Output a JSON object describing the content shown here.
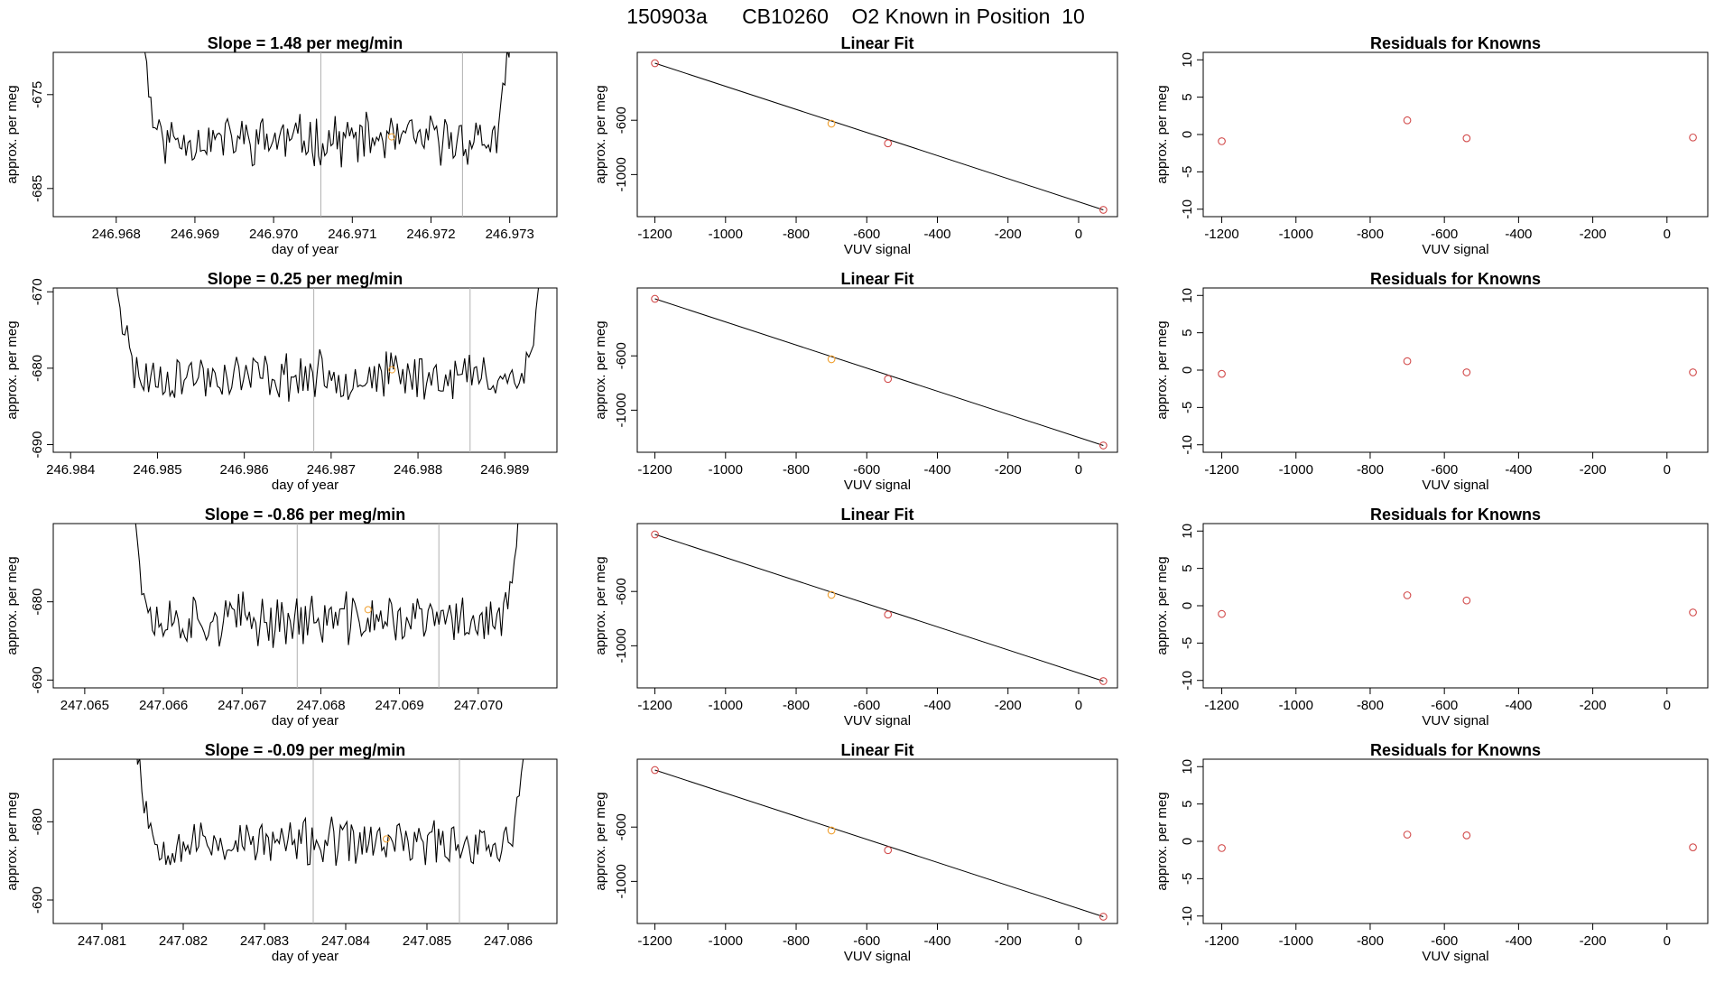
{
  "chart_data": {
    "type": "figure-grid",
    "title": "150903a      CB10260    O2 Known in Position  10",
    "colors": {
      "trace": "#000000",
      "point": "#d24b4b",
      "highlight": "#f0a030",
      "vline": "#b0b0b0"
    },
    "rows": [
      {
        "timeseries": {
          "type": "line",
          "title": "Slope =  1.48  per meg/min",
          "xlabel": "day of year",
          "ylabel": "approx. per meg",
          "xlim": [
            246.9672,
            246.9736
          ],
          "ylim": [
            -688,
            -670.5
          ],
          "xticks": [
            "246.968",
            "246.969",
            "246.970",
            "246.971",
            "246.972",
            "246.973"
          ],
          "yticks": [
            "-675",
            "-685"
          ],
          "vlines": [
            246.9706,
            246.9724
          ],
          "marker": {
            "x": 246.9715,
            "y": -679.5
          },
          "seed": 11,
          "start": 246.96815,
          "end": 246.97315,
          "base": -679.8,
          "amp": 2.2
        },
        "fit": {
          "type": "line",
          "title": "Linear Fit",
          "xlabel": "VUV signal",
          "ylabel": "approx. per meg",
          "xlim": [
            -1250,
            110
          ],
          "ylim": [
            -1310,
            -100
          ],
          "xticks": [
            "-1200",
            "-1000",
            "-800",
            "-600",
            "-400",
            "-200",
            "0"
          ],
          "yticks": [
            "-600",
            "-1000"
          ],
          "points": [
            {
              "x": -1200,
              "y": -180,
              "hi": false
            },
            {
              "x": -700,
              "y": -625,
              "hi": true
            },
            {
              "x": -540,
              "y": -770,
              "hi": false
            },
            {
              "x": 70,
              "y": -1260,
              "hi": false
            }
          ]
        },
        "residuals": {
          "type": "scatter",
          "title": "Residuals for Knowns",
          "xlabel": "VUV signal",
          "xlim": [
            -1250,
            110
          ],
          "ylim": [
            -11,
            11
          ],
          "xticks": [
            "-1200",
            "-1000",
            "-800",
            "-600",
            "-400",
            "-200",
            "0"
          ],
          "yticks": [
            "-10",
            "-5",
            "0",
            "5",
            "10"
          ],
          "points": [
            {
              "x": -1200,
              "y": -0.9
            },
            {
              "x": -700,
              "y": 1.9
            },
            {
              "x": -540,
              "y": -0.5
            },
            {
              "x": 70,
              "y": -0.4
            }
          ]
        }
      },
      {
        "timeseries": {
          "type": "line",
          "title": "Slope =  0.25  per meg/min",
          "xlabel": "day of year",
          "ylabel": "approx. per meg",
          "xlim": [
            246.9838,
            246.9896
          ],
          "ylim": [
            -691,
            -669.5
          ],
          "xticks": [
            "246.984",
            "246.985",
            "246.986",
            "246.987",
            "246.988",
            "246.989"
          ],
          "yticks": [
            "-670",
            "-680",
            "-690"
          ],
          "vlines": [
            246.9868,
            246.9886
          ],
          "marker": {
            "x": 246.9877,
            "y": -680.2
          },
          "seed": 23,
          "start": 246.98435,
          "end": 246.98955,
          "base": -681.0,
          "amp": 2.6
        },
        "fit": {
          "type": "line",
          "title": "Linear Fit",
          "xlabel": "VUV signal",
          "ylabel": "approx. per meg",
          "xlim": [
            -1250,
            110
          ],
          "ylim": [
            -1310,
            -100
          ],
          "xticks": [
            "-1200",
            "-1000",
            "-800",
            "-600",
            "-400",
            "-200",
            "0"
          ],
          "yticks": [
            "-600",
            "-1000"
          ],
          "points": [
            {
              "x": -1200,
              "y": -180,
              "hi": false
            },
            {
              "x": -700,
              "y": -625,
              "hi": true
            },
            {
              "x": -540,
              "y": -770,
              "hi": false
            },
            {
              "x": 70,
              "y": -1260,
              "hi": false
            }
          ]
        },
        "residuals": {
          "type": "scatter",
          "title": "Residuals for Knowns",
          "xlabel": "VUV signal",
          "xlim": [
            -1250,
            110
          ],
          "ylim": [
            -11,
            11
          ],
          "xticks": [
            "-1200",
            "-1000",
            "-800",
            "-600",
            "-400",
            "-200",
            "0"
          ],
          "yticks": [
            "-10",
            "-5",
            "0",
            "5",
            "10"
          ],
          "points": [
            {
              "x": -1200,
              "y": -0.5
            },
            {
              "x": -700,
              "y": 1.2
            },
            {
              "x": -540,
              "y": -0.3
            },
            {
              "x": 70,
              "y": -0.3
            }
          ]
        }
      },
      {
        "timeseries": {
          "type": "line",
          "title": "Slope =  -0.86  per meg/min",
          "xlabel": "day of year",
          "ylabel": "approx. per meg",
          "xlim": [
            247.0646,
            247.071
          ],
          "ylim": [
            -691,
            -670
          ],
          "xticks": [
            "247.065",
            "247.066",
            "247.067",
            "247.068",
            "247.069",
            "247.070"
          ],
          "yticks": [
            "-680",
            "-690"
          ],
          "vlines": [
            247.0677,
            247.0695
          ],
          "marker": {
            "x": 247.0686,
            "y": -681
          },
          "seed": 37,
          "start": 247.06545,
          "end": 247.07065,
          "base": -682.3,
          "amp": 2.8
        },
        "fit": {
          "type": "line",
          "title": "Linear Fit",
          "xlabel": "VUV signal",
          "ylabel": "approx. per meg",
          "xlim": [
            -1250,
            110
          ],
          "ylim": [
            -1310,
            -100
          ],
          "xticks": [
            "-1200",
            "-1000",
            "-800",
            "-600",
            "-400",
            "-200",
            "0"
          ],
          "yticks": [
            "-600",
            "-1000"
          ],
          "points": [
            {
              "x": -1200,
              "y": -180,
              "hi": false
            },
            {
              "x": -700,
              "y": -625,
              "hi": true
            },
            {
              "x": -540,
              "y": -770,
              "hi": false
            },
            {
              "x": 70,
              "y": -1260,
              "hi": false
            }
          ]
        },
        "residuals": {
          "type": "scatter",
          "title": "Residuals for Knowns",
          "xlabel": "VUV signal",
          "xlim": [
            -1250,
            110
          ],
          "ylim": [
            -11,
            11
          ],
          "xticks": [
            "-1200",
            "-1000",
            "-800",
            "-600",
            "-400",
            "-200",
            "0"
          ],
          "yticks": [
            "-10",
            "-5",
            "0",
            "5",
            "10"
          ],
          "points": [
            {
              "x": -1200,
              "y": -1.1
            },
            {
              "x": -700,
              "y": 1.4
            },
            {
              "x": -540,
              "y": 0.7
            },
            {
              "x": 70,
              "y": -0.9
            }
          ]
        }
      },
      {
        "timeseries": {
          "type": "line",
          "title": "Slope =  -0.09  per meg/min",
          "xlabel": "day of year",
          "ylabel": "approx. per meg",
          "xlim": [
            247.0804,
            247.0866
          ],
          "ylim": [
            -693,
            -672
          ],
          "xticks": [
            "247.081",
            "247.082",
            "247.083",
            "247.084",
            "247.085",
            "247.086"
          ],
          "yticks": [
            "-680",
            "-690"
          ],
          "vlines": [
            247.0836,
            247.0854
          ],
          "marker": {
            "x": 247.0845,
            "y": -682.2
          },
          "seed": 53,
          "start": 247.08125,
          "end": 247.08635,
          "base": -682.7,
          "amp": 2.5
        },
        "fit": {
          "type": "line",
          "title": "Linear Fit",
          "xlabel": "VUV signal",
          "ylabel": "approx. per meg",
          "xlim": [
            -1250,
            110
          ],
          "ylim": [
            -1310,
            -100
          ],
          "xticks": [
            "-1200",
            "-1000",
            "-800",
            "-600",
            "-400",
            "-200",
            "0"
          ],
          "yticks": [
            "-600",
            "-1000"
          ],
          "points": [
            {
              "x": -1200,
              "y": -180,
              "hi": false
            },
            {
              "x": -700,
              "y": -625,
              "hi": true
            },
            {
              "x": -540,
              "y": -770,
              "hi": false
            },
            {
              "x": 70,
              "y": -1260,
              "hi": false
            }
          ]
        },
        "residuals": {
          "type": "scatter",
          "title": "Residuals for Knowns",
          "xlabel": "VUV signal",
          "xlim": [
            -1250,
            110
          ],
          "ylim": [
            -11,
            11
          ],
          "xticks": [
            "-1200",
            "-1000",
            "-800",
            "-600",
            "-400",
            "-200",
            "0"
          ],
          "yticks": [
            "-10",
            "-5",
            "0",
            "5",
            "10"
          ],
          "points": [
            {
              "x": -1200,
              "y": -0.9
            },
            {
              "x": -700,
              "y": 0.9
            },
            {
              "x": -540,
              "y": 0.8
            },
            {
              "x": 70,
              "y": -0.8
            }
          ]
        }
      }
    ]
  }
}
